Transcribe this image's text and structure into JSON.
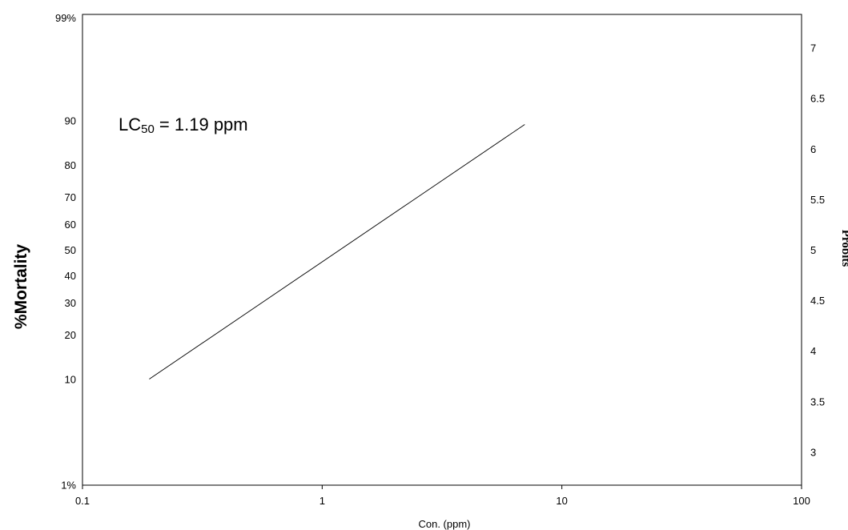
{
  "chart_data": {
    "type": "line",
    "title": "",
    "xlabel": "Con. (ppm)",
    "ylabel": "%Mortality",
    "y2label": "Probits",
    "xscale": "log",
    "xlim": [
      0.1,
      100
    ],
    "x_ticks": [
      {
        "value": 0.1,
        "label": "0.1"
      },
      {
        "value": 1,
        "label": "1"
      },
      {
        "value": 10,
        "label": "10"
      },
      {
        "value": 100,
        "label": "100"
      }
    ],
    "yscale": "probit",
    "y_ticks": [
      {
        "value": 1,
        "label": "1%"
      },
      {
        "value": 10,
        "label": "10"
      },
      {
        "value": 20,
        "label": "20"
      },
      {
        "value": 30,
        "label": "30"
      },
      {
        "value": 40,
        "label": "40"
      },
      {
        "value": 50,
        "label": "50"
      },
      {
        "value": 60,
        "label": "60"
      },
      {
        "value": 70,
        "label": "70"
      },
      {
        "value": 80,
        "label": "80"
      },
      {
        "value": 90,
        "label": "90"
      },
      {
        "value": 99,
        "label": "99%"
      }
    ],
    "y2lim": [
      2.67,
      7.33
    ],
    "y2_ticks": [
      3,
      3.5,
      4,
      4.5,
      5,
      5.5,
      6,
      6.5,
      7
    ],
    "series": [
      {
        "x": [
          0.19,
          7.0
        ],
        "y_probit": [
          3.72,
          6.24
        ]
      }
    ],
    "annotation": {
      "prefix": "LC",
      "subscript": "50",
      "suffix": " = 1.19 ppm"
    },
    "grid": false,
    "legend": "none"
  }
}
